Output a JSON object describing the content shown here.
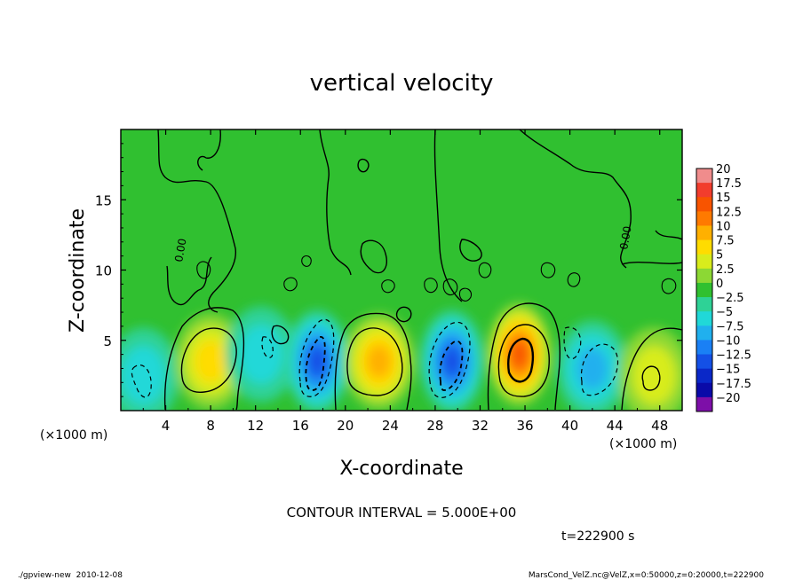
{
  "chart_data": {
    "type": "heatmap",
    "title": "vertical velocity",
    "xlabel": "X-coordinate",
    "ylabel": "Z-coordinate",
    "x_unit": "(×1000 m)",
    "y_unit": "(×1000 m)",
    "x_ticks": [
      4,
      8,
      12,
      16,
      20,
      24,
      28,
      32,
      36,
      40,
      44,
      48
    ],
    "y_ticks": [
      5,
      10,
      15
    ],
    "xlim": [
      0,
      50
    ],
    "ylim": [
      0,
      20
    ],
    "colorbar": {
      "levels": [
        "20",
        "17.5",
        "15",
        "12.5",
        "10",
        "7.5",
        "5",
        "2.5",
        "0",
        "−2.5",
        "−5",
        "−7.5",
        "−10",
        "−12.5",
        "−15",
        "−17.5",
        "−20"
      ],
      "colors": [
        "#f08c8c",
        "#f23d2d",
        "#f85400",
        "#ff7a00",
        "#ffb000",
        "#ffdc00",
        "#d8ec1c",
        "#8cd834",
        "#30c030",
        "#2ed296",
        "#20d8d8",
        "#20b0ee",
        "#1a80f5",
        "#1450e6",
        "#0a28c8",
        "#0a0aa8",
        "#7d0fa8"
      ]
    },
    "cells": [
      {
        "x": 2.0,
        "z": 2.5,
        "w": -5
      },
      {
        "x": 8.0,
        "z": 3.5,
        "w": 8
      },
      {
        "x": 12.5,
        "z": 4.0,
        "w": -4
      },
      {
        "x": 17.5,
        "z": 3.5,
        "w": -13
      },
      {
        "x": 23.0,
        "z": 3.5,
        "w": 9
      },
      {
        "x": 29.5,
        "z": 3.5,
        "w": -13
      },
      {
        "x": 35.5,
        "z": 4.0,
        "w": 14
      },
      {
        "x": 42.0,
        "z": 3.0,
        "w": -7
      },
      {
        "x": 47.5,
        "z": 2.5,
        "w": 5
      }
    ],
    "contour_interval": "CONTOUR INTERVAL = 5.000E+00",
    "contour_zero_label": "0.00",
    "time_label": "t=222900 s"
  },
  "footer": {
    "left": "./gpview-new  2010-12-08",
    "right": "MarsCond_VelZ.nc@VelZ,x=0:50000,z=0:20000,t=222900"
  }
}
